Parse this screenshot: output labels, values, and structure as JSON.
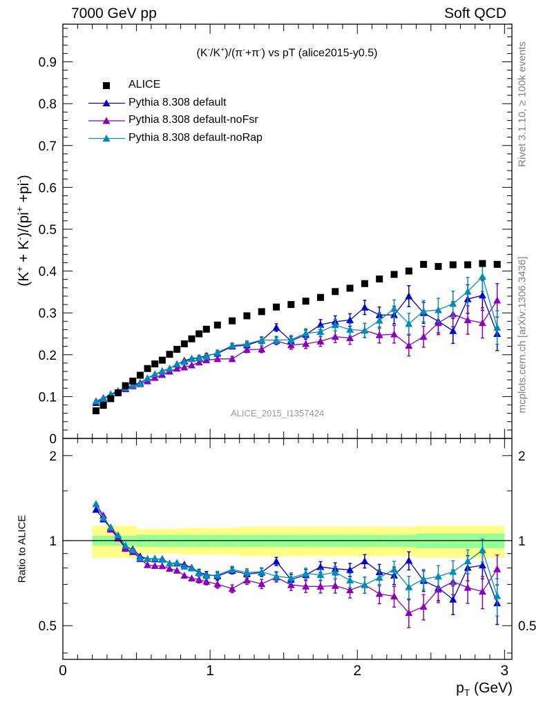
{
  "header": {
    "energy_label": "7000 GeV pp",
    "process_label": "Soft QCD"
  },
  "chart_data": {
    "type": "scatter",
    "title": "(K^-/K^+)/(π^-+π^-) vs pT (alice2015-y0.5)",
    "ylabel": "(K^+ + K^-)/(pi^+ +pi^-)",
    "xlabel": "p_T (GeV)",
    "ratio_ylabel": "Ratio to ALICE",
    "analysis_label": "ALICE_2015_I1357424",
    "side_labels": {
      "rivet": "Rivet 3.1.10, ≥ 100k events",
      "mcplots": "mcplots.cern.ch [arXiv:1306.3436]"
    },
    "xlim": [
      0,
      3.05
    ],
    "ylim": [
      0,
      0.99
    ],
    "ratio_ylim": [
      0.38,
      2.3
    ],
    "ratio_scale": "log",
    "x_ticks": [
      "0",
      "1",
      "2",
      "3"
    ],
    "y_ticks": [
      "0",
      "0.1",
      "0.2",
      "0.3",
      "0.4",
      "0.5",
      "0.6",
      "0.7",
      "0.8",
      "0.9"
    ],
    "ratio_ticks": [
      "0.5",
      "1",
      "2"
    ],
    "legend_position": "top-left",
    "x": [
      0.225,
      0.275,
      0.325,
      0.375,
      0.425,
      0.475,
      0.525,
      0.575,
      0.625,
      0.675,
      0.725,
      0.775,
      0.825,
      0.875,
      0.925,
      0.975,
      1.05,
      1.15,
      1.25,
      1.35,
      1.45,
      1.55,
      1.65,
      1.75,
      1.85,
      1.95,
      2.05,
      2.15,
      2.25,
      2.35,
      2.45,
      2.55,
      2.65,
      2.75,
      2.85,
      2.95
    ],
    "series": [
      {
        "name": "ALICE",
        "color": "#000000",
        "marker": "square",
        "values": [
          0.066,
          0.079,
          0.095,
          0.109,
          0.126,
          0.137,
          0.151,
          0.167,
          0.178,
          0.187,
          0.201,
          0.213,
          0.226,
          0.238,
          0.25,
          0.261,
          0.271,
          0.281,
          0.293,
          0.303,
          0.314,
          0.32,
          0.328,
          0.337,
          0.351,
          0.359,
          0.37,
          0.381,
          0.392,
          0.4,
          0.416,
          0.411,
          0.415,
          0.415,
          0.418,
          0.416
        ],
        "band_inner": [
          0.04,
          0.04,
          0.04,
          0.04,
          0.04,
          0.04,
          0.05,
          0.05,
          0.05,
          0.05,
          0.05,
          0.05,
          0.05,
          0.05,
          0.05,
          0.05,
          0.05,
          0.05,
          0.05,
          0.05,
          0.05,
          0.05,
          0.05,
          0.05,
          0.05,
          0.05,
          0.05,
          0.05,
          0.05,
          0.05,
          0.06,
          0.06,
          0.06,
          0.06,
          0.06,
          0.06
        ],
        "band_outer": [
          0.13,
          0.13,
          0.13,
          0.13,
          0.13,
          0.13,
          0.1,
          0.1,
          0.1,
          0.1,
          0.1,
          0.1,
          0.11,
          0.11,
          0.11,
          0.11,
          0.11,
          0.11,
          0.12,
          0.12,
          0.12,
          0.12,
          0.12,
          0.12,
          0.12,
          0.12,
          0.12,
          0.12,
          0.12,
          0.12,
          0.13,
          0.13,
          0.13,
          0.13,
          0.13,
          0.13
        ]
      },
      {
        "name": "Pythia 8.308 default",
        "color": "#0000cc",
        "marker": "triangle",
        "values": [
          0.085,
          0.094,
          0.105,
          0.112,
          0.119,
          0.128,
          0.133,
          0.144,
          0.153,
          0.161,
          0.167,
          0.177,
          0.186,
          0.191,
          0.193,
          0.198,
          0.203,
          0.22,
          0.223,
          0.234,
          0.265,
          0.233,
          0.248,
          0.272,
          0.279,
          0.283,
          0.313,
          0.295,
          0.295,
          0.34,
          0.3,
          0.28,
          0.257,
          0.333,
          0.342,
          0.25
        ],
        "err": [
          0.002,
          0.002,
          0.002,
          0.002,
          0.002,
          0.002,
          0.003,
          0.003,
          0.003,
          0.003,
          0.004,
          0.004,
          0.004,
          0.004,
          0.005,
          0.005,
          0.006,
          0.006,
          0.007,
          0.008,
          0.009,
          0.01,
          0.011,
          0.012,
          0.014,
          0.015,
          0.017,
          0.019,
          0.021,
          0.025,
          0.025,
          0.028,
          0.03,
          0.034,
          0.036,
          0.04
        ]
      },
      {
        "name": "Pythia 8.308 default-noFsr",
        "color": "#8800bb",
        "marker": "triangle",
        "values": [
          0.089,
          0.097,
          0.104,
          0.111,
          0.118,
          0.125,
          0.13,
          0.137,
          0.145,
          0.152,
          0.16,
          0.167,
          0.17,
          0.175,
          0.182,
          0.187,
          0.19,
          0.19,
          0.212,
          0.213,
          0.233,
          0.223,
          0.226,
          0.232,
          0.243,
          0.24,
          0.258,
          0.247,
          0.249,
          0.222,
          0.243,
          0.276,
          0.297,
          0.283,
          0.276,
          0.33
        ],
        "err": [
          0.002,
          0.002,
          0.002,
          0.002,
          0.002,
          0.002,
          0.003,
          0.003,
          0.003,
          0.003,
          0.004,
          0.004,
          0.004,
          0.004,
          0.005,
          0.005,
          0.006,
          0.006,
          0.007,
          0.008,
          0.009,
          0.01,
          0.011,
          0.012,
          0.014,
          0.015,
          0.017,
          0.019,
          0.021,
          0.025,
          0.025,
          0.028,
          0.03,
          0.034,
          0.036,
          0.04
        ]
      },
      {
        "name": "Pythia 8.308 default-noRap",
        "color": "#008cb4",
        "marker": "triangle",
        "values": [
          0.089,
          0.095,
          0.106,
          0.114,
          0.121,
          0.127,
          0.131,
          0.144,
          0.154,
          0.16,
          0.167,
          0.178,
          0.183,
          0.19,
          0.192,
          0.196,
          0.205,
          0.222,
          0.226,
          0.235,
          0.235,
          0.236,
          0.251,
          0.255,
          0.271,
          0.26,
          0.258,
          0.282,
          0.31,
          0.274,
          0.304,
          0.307,
          0.322,
          0.351,
          0.387,
          0.265
        ],
        "err": [
          0.002,
          0.002,
          0.002,
          0.002,
          0.002,
          0.002,
          0.003,
          0.003,
          0.003,
          0.003,
          0.004,
          0.004,
          0.004,
          0.004,
          0.005,
          0.005,
          0.006,
          0.006,
          0.007,
          0.008,
          0.009,
          0.01,
          0.011,
          0.012,
          0.014,
          0.015,
          0.017,
          0.019,
          0.021,
          0.025,
          0.025,
          0.028,
          0.03,
          0.034,
          0.036,
          0.04
        ]
      }
    ]
  }
}
